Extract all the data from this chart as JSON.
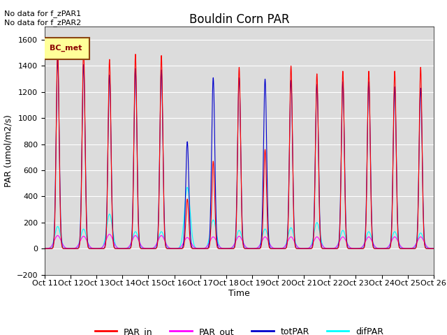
{
  "title": "Bouldin Corn PAR",
  "ylabel": "PAR (umol/m2/s)",
  "xlabel": "Time",
  "ylim": [
    -200,
    1700
  ],
  "yticks": [
    -200,
    0,
    200,
    400,
    600,
    800,
    1000,
    1200,
    1400,
    1600
  ],
  "xtick_labels": [
    "Oct 11",
    "Oct 12",
    "Oct 13",
    "Oct 14",
    "Oct 15",
    "Oct 16",
    "Oct 17",
    "Oct 18",
    "Oct 19",
    "Oct 20",
    "Oct 21",
    "Oct 22",
    "Oct 23",
    "Oct 24",
    "Oct 25",
    "Oct 26"
  ],
  "annotation_text": "No data for f_zPAR1\nNo data for f_zPAR2",
  "legend_box_text": "BC_met",
  "legend_box_color": "#FFFF99",
  "legend_box_edge": "#8B4513",
  "colors": {
    "PAR_in": "#FF0000",
    "PAR_out": "#FF00FF",
    "totPAR": "#0000CC",
    "difPAR": "#00FFFF"
  },
  "background_color": "#DCDCDC",
  "title_fontsize": 12,
  "label_fontsize": 9,
  "tick_fontsize": 8,
  "par_in_peaks": [
    1550,
    1530,
    1450,
    1490,
    1480,
    380,
    670,
    1390,
    760,
    1400,
    1340,
    1360,
    1360,
    1360,
    1390
  ],
  "tot_par_peaks": [
    1450,
    1410,
    1330,
    1380,
    1370,
    820,
    1310,
    1310,
    1300,
    1290,
    1260,
    1280,
    1280,
    1240,
    1230
  ],
  "dif_par_peaks": [
    170,
    150,
    265,
    130,
    130,
    470,
    220,
    140,
    150,
    160,
    200,
    140,
    130,
    130,
    120
  ],
  "par_out_peaks": [
    100,
    95,
    110,
    100,
    100,
    85,
    90,
    95,
    90,
    90,
    90,
    90,
    90,
    90,
    90
  ]
}
